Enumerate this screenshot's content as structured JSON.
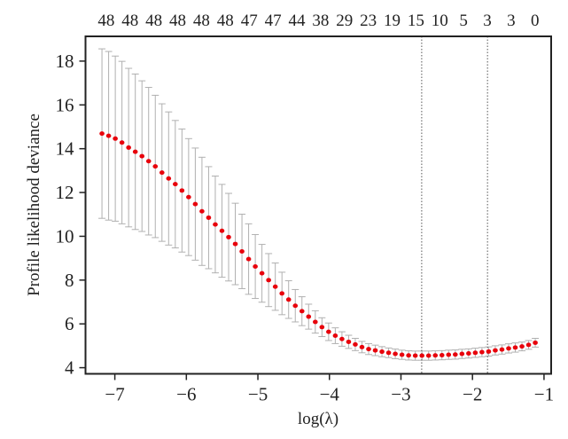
{
  "chart_data": {
    "type": "scatter",
    "title": "",
    "xlabel": "log(λ)",
    "ylabel": "Profile likelihood deviance",
    "xlim": [
      -7.41,
      -0.9
    ],
    "ylim": [
      3.72,
      19.13
    ],
    "xticks": [
      -7,
      -6,
      -5,
      -4,
      -3,
      -2,
      -1
    ],
    "xtick_labels": [
      "−7",
      "−6",
      "−5",
      "−4",
      "−3",
      "−2",
      "−1"
    ],
    "yticks": [
      4,
      6,
      8,
      10,
      12,
      14,
      16,
      18
    ],
    "ytick_labels": [
      "4",
      "6",
      "8",
      "10",
      "12",
      "14",
      "16",
      "18"
    ],
    "grid": false,
    "point_color": "#e8000b",
    "errorbar_color": "#b0b0b0",
    "vline_color": "#555555",
    "x_start": -7.18,
    "x_step": 0.0932,
    "mean": [
      14.69,
      14.59,
      14.46,
      14.28,
      14.05,
      13.86,
      13.66,
      13.43,
      13.19,
      12.91,
      12.64,
      12.38,
      12.09,
      11.79,
      11.47,
      11.14,
      10.85,
      10.54,
      10.25,
      9.96,
      9.65,
      9.31,
      8.96,
      8.62,
      8.31,
      8.0,
      7.7,
      7.39,
      7.11,
      6.83,
      6.58,
      6.33,
      6.09,
      5.85,
      5.64,
      5.46,
      5.31,
      5.18,
      5.06,
      4.94,
      4.85,
      4.79,
      4.73,
      4.68,
      4.63,
      4.59,
      4.56,
      4.55,
      4.55,
      4.55,
      4.56,
      4.57,
      4.59,
      4.6,
      4.63,
      4.65,
      4.68,
      4.71,
      4.74,
      4.79,
      4.83,
      4.88,
      4.92,
      4.97,
      5.04,
      5.14
    ],
    "se": [
      3.87,
      3.85,
      3.77,
      3.71,
      3.62,
      3.55,
      3.44,
      3.37,
      3.25,
      3.14,
      3.04,
      2.91,
      2.81,
      2.67,
      2.56,
      2.47,
      2.33,
      2.21,
      2.12,
      2.0,
      1.86,
      1.7,
      1.61,
      1.46,
      1.32,
      1.21,
      1.08,
      0.97,
      0.86,
      0.74,
      0.66,
      0.57,
      0.51,
      0.43,
      0.4,
      0.36,
      0.33,
      0.3,
      0.28,
      0.26,
      0.25,
      0.24,
      0.23,
      0.22,
      0.22,
      0.21,
      0.21,
      0.21,
      0.21,
      0.21,
      0.21,
      0.21,
      0.21,
      0.21,
      0.21,
      0.21,
      0.21,
      0.21,
      0.21,
      0.21,
      0.21,
      0.21,
      0.21,
      0.2,
      0.2,
      0.2
    ],
    "vlines": [
      -2.71,
      -1.79
    ],
    "top_axis": {
      "labels": [
        "48",
        "48",
        "48",
        "48",
        "48",
        "48",
        "47",
        "47",
        "44",
        "38",
        "29",
        "23",
        "19",
        "15",
        "10",
        "5",
        "3",
        "3",
        "0"
      ],
      "x": [
        -7.12,
        -6.787,
        -6.454,
        -6.121,
        -5.788,
        -5.455,
        -5.122,
        -4.789,
        -4.456,
        -4.123,
        -3.79,
        -3.457,
        -3.124,
        -2.791,
        -2.458,
        -2.125,
        -1.792,
        -1.459,
        -1.126
      ]
    }
  }
}
